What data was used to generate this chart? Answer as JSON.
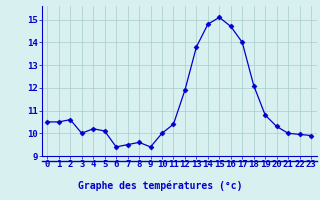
{
  "x": [
    0,
    1,
    2,
    3,
    4,
    5,
    6,
    7,
    8,
    9,
    10,
    11,
    12,
    13,
    14,
    15,
    16,
    17,
    18,
    19,
    20,
    21,
    22,
    23
  ],
  "y": [
    10.5,
    10.5,
    10.6,
    10.0,
    10.2,
    10.1,
    9.4,
    9.5,
    9.6,
    9.4,
    10.0,
    10.4,
    11.9,
    13.8,
    14.8,
    15.1,
    14.7,
    14.0,
    12.1,
    10.8,
    10.3,
    10.0,
    9.95,
    9.9
  ],
  "line_color": "#0000cc",
  "marker": "D",
  "marker_size": 2.5,
  "bg_color": "#d8f0f0",
  "grid_color": "#aacccc",
  "xlabel": "Graphe des températures (°c)",
  "xlabel_color": "#0000cc",
  "xlabel_fontsize": 7,
  "tick_color": "#0000cc",
  "tick_fontsize": 6.5,
  "ylim": [
    9.0,
    15.6
  ],
  "yticks": [
    9,
    10,
    11,
    12,
    13,
    14,
    15
  ],
  "xlim": [
    -0.5,
    23.5
  ],
  "xticks": [
    0,
    1,
    2,
    3,
    4,
    5,
    6,
    7,
    8,
    9,
    10,
    11,
    12,
    13,
    14,
    15,
    16,
    17,
    18,
    19,
    20,
    21,
    22,
    23
  ],
  "spine_color": "#0000cc",
  "separator_color": "#0000cc"
}
